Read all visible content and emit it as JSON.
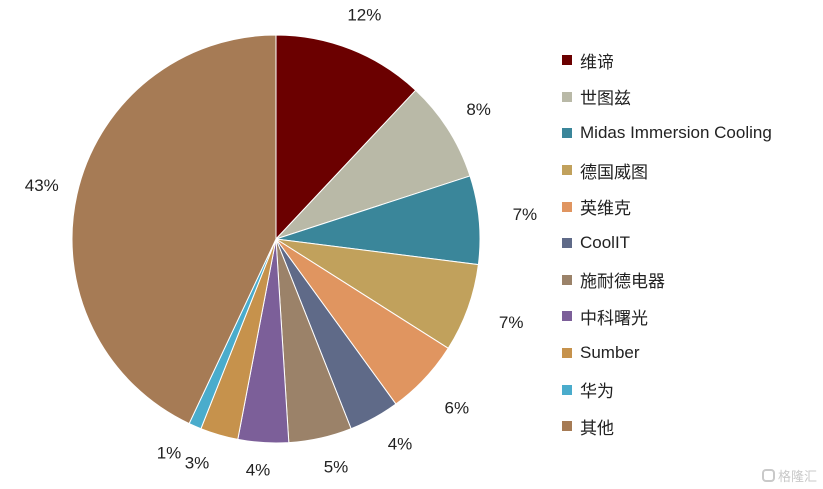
{
  "chart_data": {
    "type": "pie",
    "categories": [
      "维谛",
      "世图兹",
      "Midas Immersion Cooling",
      "德国威图",
      "英维克",
      "CoolIT",
      "施耐德电器",
      "中科曙光",
      "Sumber",
      "华为",
      "其他"
    ],
    "values": [
      12,
      8,
      7,
      7,
      6,
      4,
      5,
      4,
      3,
      1,
      43
    ],
    "labels": [
      "12%",
      "8%",
      "7%",
      "7%",
      "6%",
      "4%",
      "5%",
      "4%",
      "3%",
      "1%",
      "43%"
    ],
    "colors": [
      "#6b0000",
      "#b9b9a7",
      "#3a869a",
      "#c1a15c",
      "#e09560",
      "#5f6a88",
      "#9b8269",
      "#7c5f99",
      "#c6924c",
      "#4aaccc",
      "#a67b55"
    ],
    "legend_position": "right"
  },
  "watermark": "格隆汇"
}
